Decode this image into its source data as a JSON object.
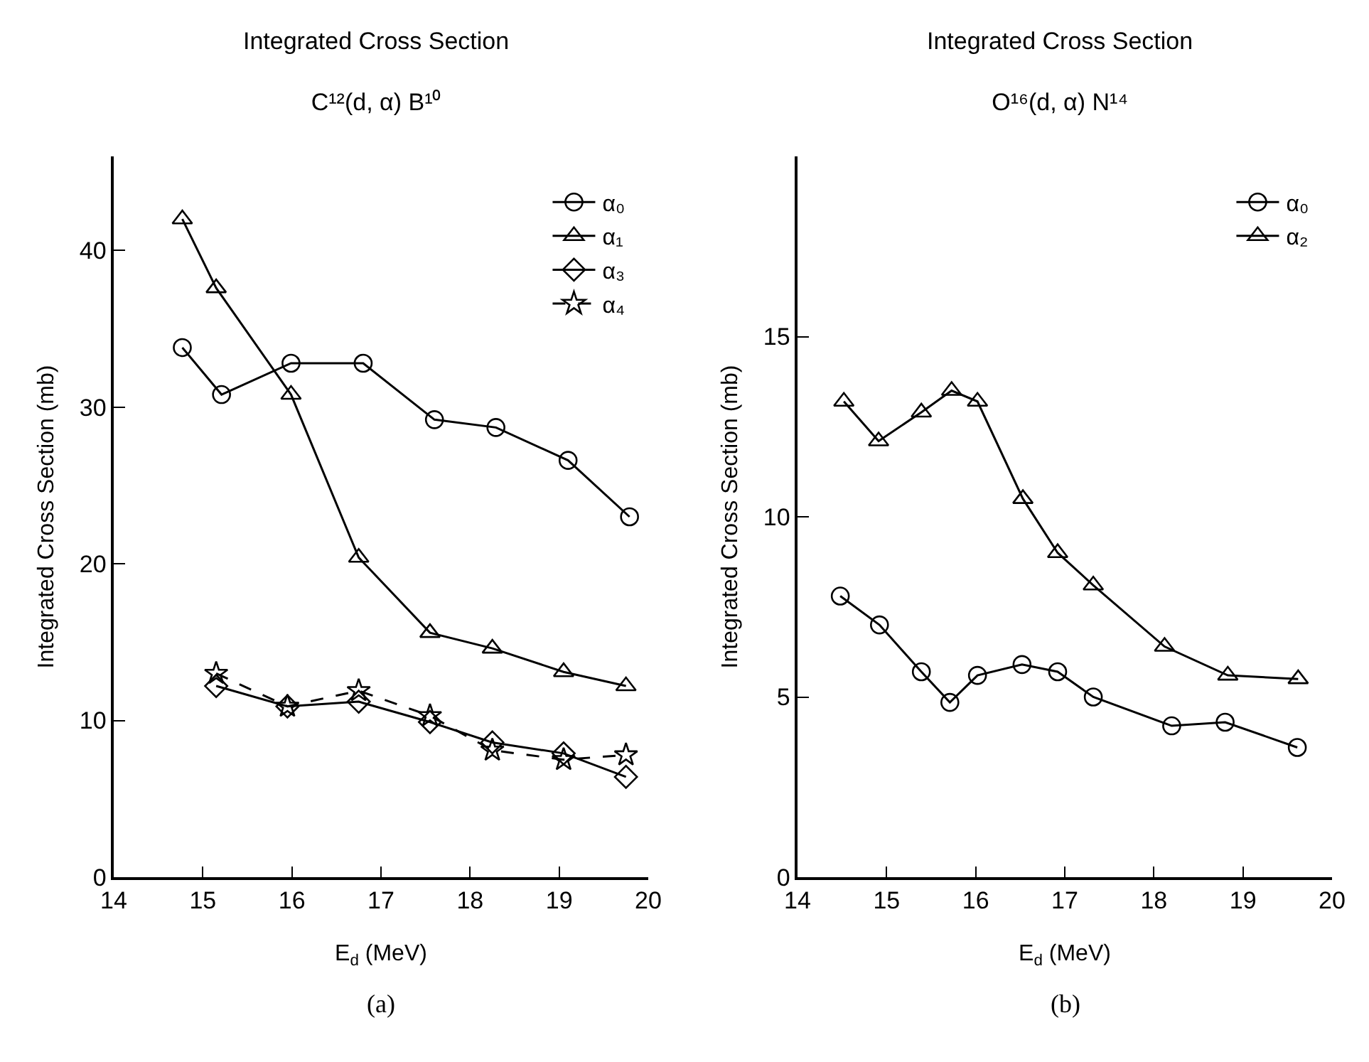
{
  "chart_data": [
    {
      "type": "line",
      "title": "Integrated Cross Section",
      "subtitle": "C¹²(d, α) B¹⁰",
      "xlabel": "E$_{d}$ (MeV)",
      "ylabel": "Integrated Cross Section (mb)",
      "annotations": [
        "(a)"
      ],
      "xlim": [
        14,
        20
      ],
      "ylim": [
        0,
        46
      ],
      "xticks": [
        14,
        15,
        16,
        17,
        18,
        19,
        20
      ],
      "yticks": [
        0,
        10,
        20,
        30,
        40
      ],
      "legend": "top right",
      "series": [
        {
          "name": "α₀",
          "color": "#000000",
          "marker": "circle",
          "line_style": "solid",
          "x": [
            14.77,
            15.21,
            15.99,
            16.8,
            17.6,
            18.29,
            19.1,
            19.79
          ],
          "values": [
            33.8,
            30.8,
            32.8,
            32.8,
            29.2,
            28.7,
            26.6,
            23.0
          ]
        },
        {
          "name": "α₁",
          "color": "#000000",
          "marker": "triangle",
          "line_style": "solid",
          "x": [
            14.77,
            15.15,
            15.99,
            16.75,
            17.55,
            18.25,
            19.05,
            19.75
          ],
          "values": [
            42.0,
            37.6,
            30.8,
            20.4,
            15.6,
            14.6,
            13.1,
            12.2
          ]
        },
        {
          "name": "α₃",
          "color": "#000000",
          "marker": "diamond",
          "line_style": "solid",
          "x": [
            15.15,
            15.95,
            16.75,
            17.55,
            18.25,
            19.05,
            19.75
          ],
          "values": [
            12.2,
            10.9,
            11.2,
            9.9,
            8.6,
            7.9,
            6.4
          ]
        },
        {
          "name": "α₄",
          "color": "#000000",
          "marker": "star",
          "line_style": "dashed",
          "x": [
            15.15,
            15.95,
            16.75,
            17.55,
            18.25,
            19.05,
            19.75
          ],
          "values": [
            13.0,
            10.9,
            11.9,
            10.3,
            8.1,
            7.5,
            7.8
          ]
        }
      ]
    },
    {
      "type": "line",
      "title": "Integrated Cross Section",
      "subtitle": "O¹⁶(d, α) N¹⁴",
      "xlabel": "E$_{d}$ (MeV)",
      "ylabel": "Integrated Cross Section (mb)",
      "annotations": [
        "(b)"
      ],
      "xlim": [
        14,
        20
      ],
      "ylim": [
        0,
        20
      ],
      "xticks": [
        14,
        15,
        16,
        17,
        18,
        19,
        20
      ],
      "yticks": [
        0,
        5,
        10,
        15
      ],
      "legend": "top right",
      "series": [
        {
          "name": "α₀",
          "color": "#000000",
          "marker": "circle",
          "line_style": "solid",
          "x": [
            14.48,
            14.92,
            15.39,
            15.71,
            16.02,
            16.52,
            16.92,
            17.32,
            18.2,
            18.8,
            19.61
          ],
          "values": [
            7.8,
            7.0,
            5.7,
            4.85,
            5.6,
            5.9,
            5.7,
            5.0,
            4.2,
            4.3,
            3.6
          ]
        },
        {
          "name": "α₂",
          "color": "#000000",
          "marker": "triangle",
          "line_style": "solid",
          "x": [
            14.52,
            14.91,
            15.39,
            15.73,
            16.02,
            16.53,
            16.92,
            17.32,
            18.12,
            18.83,
            19.62
          ],
          "values": [
            13.2,
            12.1,
            12.9,
            13.5,
            13.2,
            10.5,
            9.0,
            8.1,
            6.4,
            5.6,
            5.5
          ]
        }
      ]
    }
  ]
}
